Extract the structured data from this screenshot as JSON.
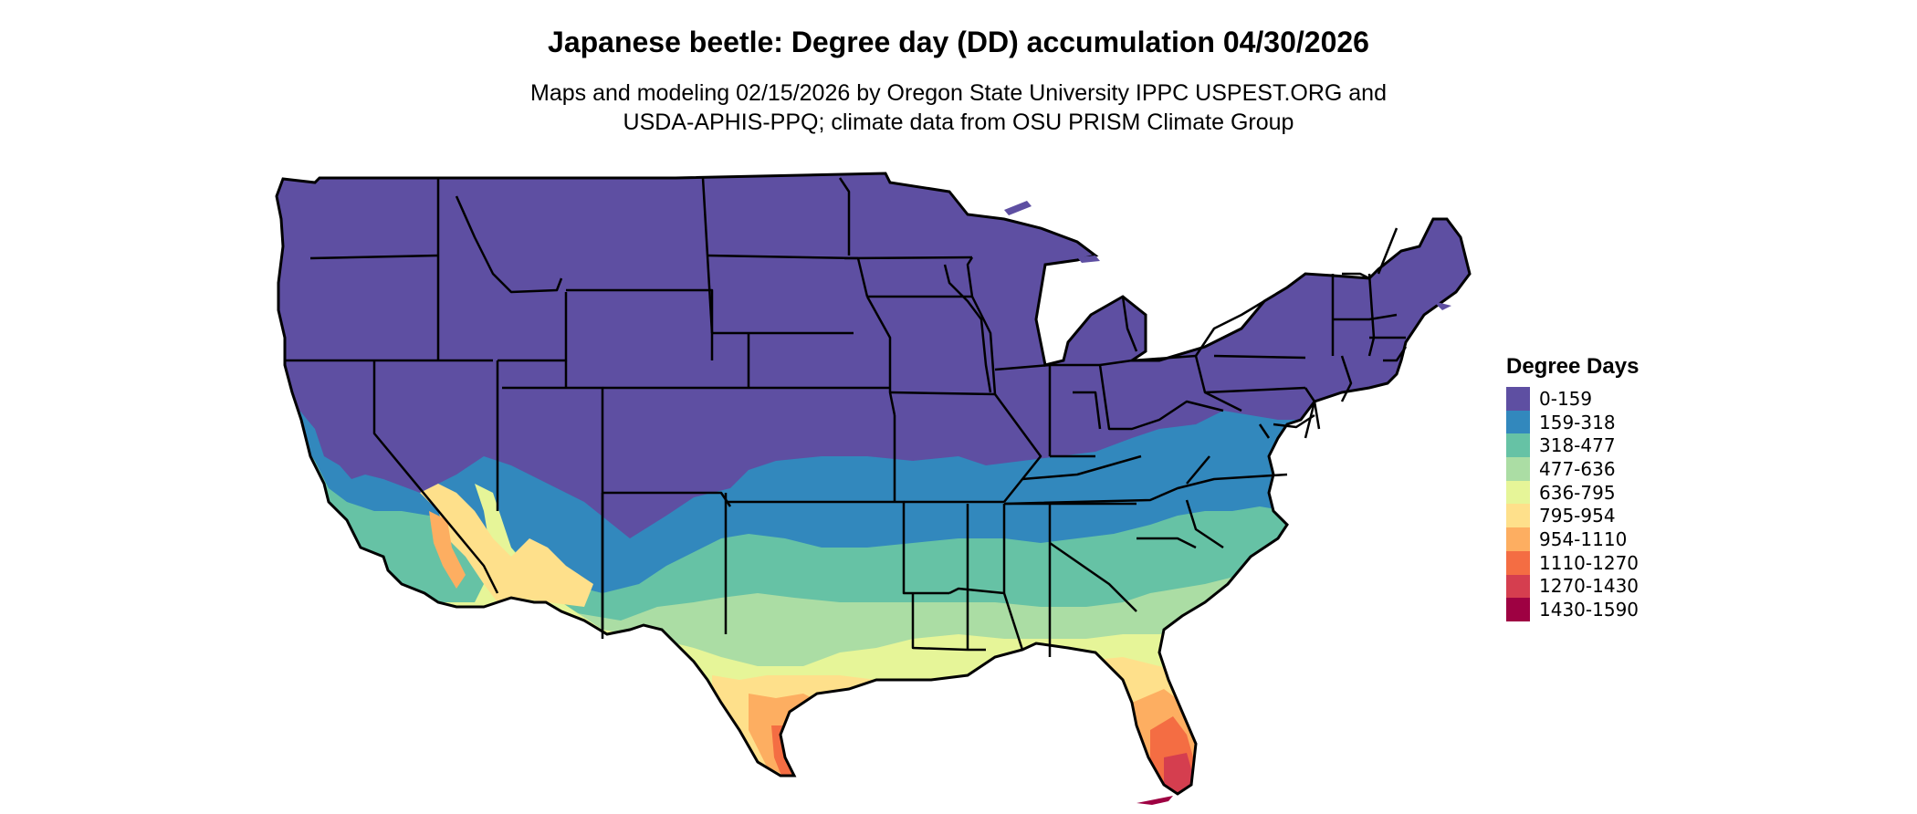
{
  "title": "Japanese beetle: Degree day (DD) accumulation 04/30/2026",
  "subtitle_line1": "Maps and modeling 02/15/2026 by Oregon State University IPPC USPEST.ORG and",
  "subtitle_line2": "USDA-APHIS-PPQ; climate data from OSU PRISM Climate Group",
  "legend": {
    "title": "Degree Days",
    "items": [
      {
        "label": "0-159",
        "color": "#5e4fa2"
      },
      {
        "label": "159-318",
        "color": "#3288bd"
      },
      {
        "label": "318-477",
        "color": "#66c2a5"
      },
      {
        "label": "477-636",
        "color": "#abdda4"
      },
      {
        "label": "636-795",
        "color": "#e6f598"
      },
      {
        "label": "795-954",
        "color": "#fee08b"
      },
      {
        "label": "954-1110",
        "color": "#fdae61"
      },
      {
        "label": "1110-1270",
        "color": "#f46d43"
      },
      {
        "label": "1270-1430",
        "color": "#d53e4f"
      },
      {
        "label": "1430-1590",
        "color": "#9e0142"
      }
    ]
  }
}
